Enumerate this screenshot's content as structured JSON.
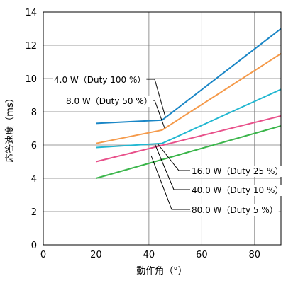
{
  "chart_data": {
    "type": "line",
    "xlabel": "動作角（°）",
    "ylabel": "応答速度（ms）",
    "xlim": [
      0,
      90
    ],
    "ylim": [
      0,
      14
    ],
    "xticks": [
      0,
      20,
      40,
      60,
      80
    ],
    "yticks": [
      0,
      2,
      4,
      6,
      8,
      10,
      12,
      14
    ],
    "grid": true,
    "series": [
      {
        "name": "4.0 W（Duty 100 %）",
        "color": "#1a86c6",
        "x": [
          20,
          45,
          90
        ],
        "y": [
          7.3,
          7.5,
          13.0
        ]
      },
      {
        "name": "8.0 W（Duty 50 %）",
        "color": "#f59a4a",
        "x": [
          20,
          45,
          90
        ],
        "y": [
          6.1,
          6.9,
          11.5
        ]
      },
      {
        "name": "16.0 W（Duty 25 %）",
        "color": "#21b7d1",
        "x": [
          20,
          45,
          90
        ],
        "y": [
          5.85,
          6.1,
          9.35
        ]
      },
      {
        "name": "40.0 W（Duty 10 %）",
        "color": "#e8508a",
        "x": [
          20,
          90
        ],
        "y": [
          5.0,
          7.75
        ]
      },
      {
        "name": "80.0 W（Duty 5 %）",
        "color": "#3ab54a",
        "x": [
          20,
          90
        ],
        "y": [
          4.0,
          7.15
        ]
      }
    ]
  }
}
